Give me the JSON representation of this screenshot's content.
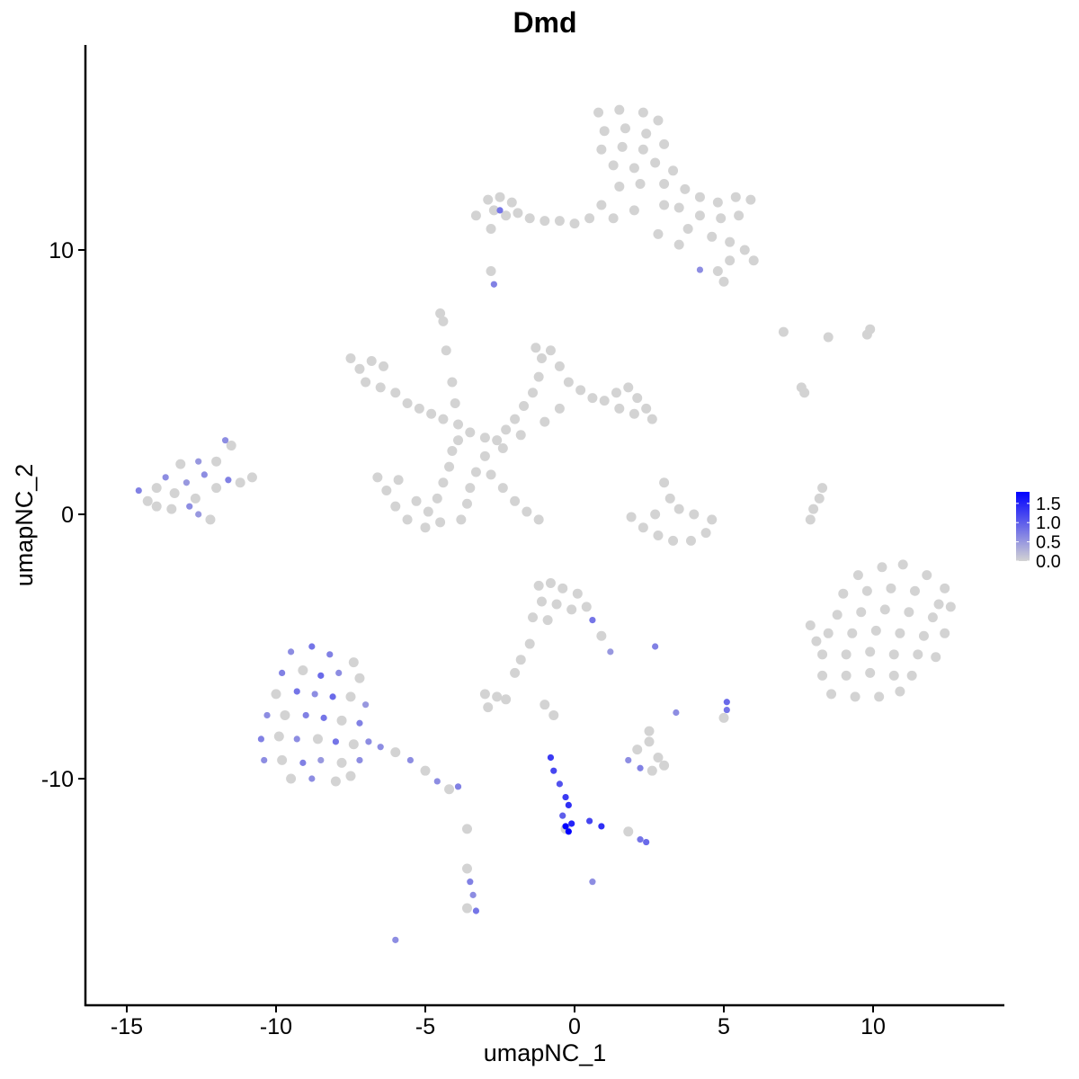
{
  "chart_data": {
    "type": "scatter",
    "title": "Dmd",
    "xlabel": "umapNC_1",
    "ylabel": "umapNC_2",
    "xlim": [
      -16.4,
      14.4
    ],
    "ylim": [
      -18.6,
      17.8
    ],
    "xticks": [
      -15,
      -10,
      -5,
      0,
      5,
      10
    ],
    "yticks": [
      -10,
      0,
      10
    ],
    "xtick_labels": [
      "-15",
      "-10",
      "-5",
      "0",
      "5",
      "10"
    ],
    "ytick_labels": [
      "-10",
      "0",
      "10"
    ],
    "grid": false,
    "color_scale": {
      "low": "#d3d3d3",
      "high": "#0000ff",
      "min": 0,
      "max": 1.8
    },
    "legend": {
      "position": "right",
      "ticks": [
        1.5,
        1.0,
        0.5,
        0.0
      ],
      "labels": [
        "1.5",
        "1.0",
        "0.5",
        "0.0"
      ]
    },
    "points": [
      [
        0.8,
        15.2,
        0
      ],
      [
        1.5,
        15.3,
        0
      ],
      [
        2.3,
        15.2,
        0
      ],
      [
        2.8,
        14.9,
        0
      ],
      [
        1.0,
        14.5,
        0
      ],
      [
        1.7,
        14.6,
        0
      ],
      [
        2.4,
        14.4,
        0
      ],
      [
        0.9,
        13.8,
        0
      ],
      [
        1.6,
        13.9,
        0
      ],
      [
        2.3,
        13.8,
        0
      ],
      [
        3.0,
        14.0,
        0
      ],
      [
        1.3,
        13.2,
        0
      ],
      [
        2.0,
        13.1,
        0
      ],
      [
        2.7,
        13.3,
        0
      ],
      [
        3.3,
        13.0,
        0
      ],
      [
        1.5,
        12.4,
        0
      ],
      [
        2.2,
        12.5,
        0
      ],
      [
        3.0,
        12.5,
        0
      ],
      [
        3.7,
        12.3,
        0
      ],
      [
        4.2,
        12.0,
        0
      ],
      [
        4.8,
        11.8,
        0
      ],
      [
        5.4,
        12.0,
        0
      ],
      [
        5.9,
        11.9,
        0
      ],
      [
        3.5,
        11.6,
        0
      ],
      [
        4.2,
        11.3,
        0
      ],
      [
        4.9,
        11.2,
        0
      ],
      [
        5.5,
        11.3,
        0
      ],
      [
        3.0,
        11.7,
        0
      ],
      [
        2.0,
        11.5,
        0
      ],
      [
        1.3,
        11.2,
        0
      ],
      [
        0.9,
        11.7,
        0
      ],
      [
        3.8,
        10.8,
        0
      ],
      [
        4.6,
        10.5,
        0
      ],
      [
        5.2,
        10.3,
        0
      ],
      [
        5.7,
        10.0,
        0
      ],
      [
        5.2,
        9.6,
        0
      ],
      [
        6.0,
        9.6,
        0
      ],
      [
        4.8,
        9.2,
        0
      ],
      [
        5.0,
        8.8,
        0
      ],
      [
        3.5,
        10.2,
        0
      ],
      [
        2.8,
        10.6,
        0
      ],
      [
        4.2,
        9.25,
        0.6
      ],
      [
        -3.3,
        11.3,
        0
      ],
      [
        -2.9,
        11.9,
        0
      ],
      [
        -2.5,
        12.0,
        0
      ],
      [
        -2.1,
        11.8,
        0
      ],
      [
        -2.7,
        11.5,
        0
      ],
      [
        -2.3,
        11.3,
        0
      ],
      [
        -1.9,
        11.4,
        0
      ],
      [
        -1.5,
        11.2,
        0
      ],
      [
        -1.0,
        11.1,
        0
      ],
      [
        -0.5,
        11.1,
        0
      ],
      [
        0.0,
        11.0,
        0
      ],
      [
        0.5,
        11.2,
        0
      ],
      [
        -2.8,
        10.8,
        0
      ],
      [
        -2.5,
        11.5,
        0.8
      ],
      [
        -2.8,
        9.2,
        0
      ],
      [
        -2.7,
        8.7,
        0.7
      ],
      [
        7.0,
        6.9,
        0
      ],
      [
        8.5,
        6.7,
        0
      ],
      [
        9.8,
        6.8,
        0
      ],
      [
        9.9,
        7.0,
        0
      ],
      [
        7.6,
        4.8,
        0
      ],
      [
        7.7,
        4.6,
        0
      ],
      [
        -7.5,
        5.9,
        0
      ],
      [
        -7.2,
        5.5,
        0
      ],
      [
        -6.8,
        5.8,
        0
      ],
      [
        -6.4,
        5.6,
        0
      ],
      [
        -7.0,
        5.0,
        0
      ],
      [
        -6.5,
        4.8,
        0
      ],
      [
        -6.0,
        4.6,
        0
      ],
      [
        -5.6,
        4.2,
        0
      ],
      [
        -5.2,
        4.0,
        0
      ],
      [
        -4.8,
        3.8,
        0
      ],
      [
        -4.4,
        3.6,
        0
      ],
      [
        -3.9,
        3.4,
        0
      ],
      [
        -3.5,
        3.1,
        0
      ],
      [
        -3.0,
        2.9,
        0
      ],
      [
        -2.6,
        2.8,
        0
      ],
      [
        -4.5,
        7.6,
        0
      ],
      [
        -4.4,
        7.3,
        0
      ],
      [
        -4.3,
        6.2,
        0
      ],
      [
        -4.1,
        5.0,
        0
      ],
      [
        -4.0,
        4.2,
        0
      ],
      [
        -2.3,
        3.2,
        0
      ],
      [
        -2.0,
        3.6,
        0
      ],
      [
        -1.7,
        4.1,
        0
      ],
      [
        -1.4,
        4.6,
        0
      ],
      [
        -1.2,
        5.2,
        0
      ],
      [
        -1.1,
        5.9,
        0
      ],
      [
        -1.3,
        6.3,
        0
      ],
      [
        -0.8,
        6.2,
        0
      ],
      [
        -0.5,
        5.6,
        0
      ],
      [
        -0.2,
        5.0,
        0
      ],
      [
        0.2,
        4.7,
        0
      ],
      [
        0.6,
        4.4,
        0
      ],
      [
        1.0,
        4.3,
        0
      ],
      [
        1.4,
        4.6,
        0
      ],
      [
        1.8,
        4.8,
        0
      ],
      [
        2.1,
        4.4,
        0
      ],
      [
        2.4,
        4.0,
        0
      ],
      [
        2.6,
        3.6,
        0
      ],
      [
        2.0,
        3.8,
        0
      ],
      [
        1.5,
        4.0,
        0
      ],
      [
        -1.0,
        3.5,
        0
      ],
      [
        -0.5,
        4.0,
        0
      ],
      [
        -1.8,
        3.0,
        0
      ],
      [
        -2.4,
        2.5,
        0
      ],
      [
        -3.0,
        2.2,
        0
      ],
      [
        -3.3,
        1.6,
        0
      ],
      [
        -3.5,
        1.0,
        0
      ],
      [
        -3.6,
        0.4,
        0
      ],
      [
        -3.8,
        -0.2,
        0
      ],
      [
        -4.2,
        1.8,
        0
      ],
      [
        -4.4,
        1.2,
        0
      ],
      [
        -4.6,
        0.6,
        0
      ],
      [
        -4.9,
        0.1,
        0
      ],
      [
        -5.3,
        0.5,
        0
      ],
      [
        -5.6,
        -0.2,
        0
      ],
      [
        -6.0,
        0.3,
        0
      ],
      [
        -6.3,
        0.9,
        0
      ],
      [
        -6.6,
        1.4,
        0
      ],
      [
        -5.9,
        1.3,
        0
      ],
      [
        -5.0,
        -0.5,
        0
      ],
      [
        -4.5,
        -0.3,
        0
      ],
      [
        -4.1,
        2.4,
        0
      ],
      [
        -3.9,
        2.8,
        0
      ],
      [
        -2.8,
        1.5,
        0
      ],
      [
        -2.4,
        1.0,
        0
      ],
      [
        -2.0,
        0.5,
        0
      ],
      [
        -1.6,
        0.1,
        0
      ],
      [
        -1.2,
        -0.2,
        0
      ],
      [
        -14.6,
        0.9,
        0.7
      ],
      [
        -14.3,
        0.5,
        0
      ],
      [
        -14.0,
        1.0,
        0
      ],
      [
        -13.7,
        1.4,
        0.6
      ],
      [
        -13.4,
        0.8,
        0
      ],
      [
        -13.0,
        1.2,
        0.5
      ],
      [
        -12.7,
        0.6,
        0
      ],
      [
        -12.4,
        1.5,
        0.6
      ],
      [
        -12.0,
        1.0,
        0
      ],
      [
        -11.6,
        1.3,
        0.7
      ],
      [
        -11.2,
        1.2,
        0
      ],
      [
        -10.8,
        1.4,
        0
      ],
      [
        -13.2,
        1.9,
        0
      ],
      [
        -12.6,
        2.0,
        0.5
      ],
      [
        -12.0,
        2.0,
        0
      ],
      [
        -11.7,
        2.8,
        0.6
      ],
      [
        -11.5,
        2.6,
        0
      ],
      [
        -12.9,
        0.3,
        0.6
      ],
      [
        -13.5,
        0.2,
        0
      ],
      [
        -12.2,
        -0.2,
        0
      ],
      [
        -12.6,
        0.0,
        0.5
      ],
      [
        -14.0,
        0.3,
        0
      ],
      [
        1.9,
        -0.1,
        0
      ],
      [
        2.3,
        -0.5,
        0
      ],
      [
        2.8,
        -0.8,
        0
      ],
      [
        3.3,
        -1.0,
        0
      ],
      [
        3.9,
        -1.0,
        0
      ],
      [
        4.4,
        -0.7,
        0
      ],
      [
        4.6,
        -0.2,
        0
      ],
      [
        3.0,
        1.2,
        0
      ],
      [
        3.2,
        0.6,
        0
      ],
      [
        3.5,
        0.2,
        0
      ],
      [
        2.7,
        0.0,
        0
      ],
      [
        4.0,
        0.0,
        0
      ],
      [
        7.9,
        -0.2,
        0
      ],
      [
        8.0,
        0.2,
        0
      ],
      [
        8.2,
        0.6,
        0
      ],
      [
        8.3,
        1.0,
        0
      ],
      [
        9.5,
        -2.3,
        0
      ],
      [
        10.3,
        -2.0,
        0
      ],
      [
        11.0,
        -1.9,
        0
      ],
      [
        11.8,
        -2.3,
        0
      ],
      [
        12.4,
        -2.8,
        0
      ],
      [
        9.0,
        -3.0,
        0
      ],
      [
        9.8,
        -2.9,
        0
      ],
      [
        10.6,
        -2.8,
        0
      ],
      [
        11.4,
        -2.9,
        0
      ],
      [
        12.2,
        -3.4,
        0
      ],
      [
        12.6,
        -3.5,
        0
      ],
      [
        8.8,
        -3.8,
        0
      ],
      [
        9.6,
        -3.7,
        0
      ],
      [
        10.4,
        -3.6,
        0
      ],
      [
        11.2,
        -3.7,
        0
      ],
      [
        12.0,
        -3.9,
        0
      ],
      [
        8.5,
        -4.5,
        0
      ],
      [
        9.3,
        -4.5,
        0
      ],
      [
        10.1,
        -4.4,
        0
      ],
      [
        10.9,
        -4.5,
        0
      ],
      [
        11.7,
        -4.6,
        0
      ],
      [
        12.4,
        -4.5,
        0
      ],
      [
        8.3,
        -5.3,
        0
      ],
      [
        9.1,
        -5.3,
        0
      ],
      [
        9.9,
        -5.2,
        0
      ],
      [
        10.7,
        -5.3,
        0
      ],
      [
        11.5,
        -5.3,
        0
      ],
      [
        12.1,
        -5.4,
        0
      ],
      [
        8.3,
        -6.1,
        0
      ],
      [
        9.1,
        -6.1,
        0
      ],
      [
        9.9,
        -6.0,
        0
      ],
      [
        10.7,
        -6.1,
        0
      ],
      [
        11.3,
        -6.1,
        0
      ],
      [
        8.6,
        -6.8,
        0
      ],
      [
        9.4,
        -6.9,
        0
      ],
      [
        10.2,
        -6.9,
        0
      ],
      [
        10.9,
        -6.7,
        0
      ],
      [
        7.9,
        -4.2,
        0
      ],
      [
        8.1,
        -4.8,
        0
      ],
      [
        -9.5,
        -5.2,
        0.6
      ],
      [
        -8.8,
        -5.0,
        0.8
      ],
      [
        -8.2,
        -5.3,
        0.7
      ],
      [
        -7.4,
        -5.6,
        0
      ],
      [
        -9.8,
        -6.0,
        0.7
      ],
      [
        -9.1,
        -5.9,
        0
      ],
      [
        -8.5,
        -6.1,
        0.9
      ],
      [
        -7.9,
        -6.0,
        0.6
      ],
      [
        -7.2,
        -6.2,
        0
      ],
      [
        -10.0,
        -6.8,
        0
      ],
      [
        -9.3,
        -6.7,
        0.8
      ],
      [
        -8.7,
        -6.8,
        0.6
      ],
      [
        -8.1,
        -6.9,
        0.9
      ],
      [
        -7.5,
        -6.9,
        0
      ],
      [
        -7.0,
        -7.2,
        0.5
      ],
      [
        -10.3,
        -7.6,
        0.6
      ],
      [
        -9.7,
        -7.6,
        0
      ],
      [
        -9.0,
        -7.6,
        0.7
      ],
      [
        -8.4,
        -7.7,
        0.8
      ],
      [
        -7.8,
        -7.8,
        0
      ],
      [
        -7.2,
        -7.9,
        0.7
      ],
      [
        -10.5,
        -8.5,
        0.7
      ],
      [
        -9.9,
        -8.4,
        0
      ],
      [
        -9.3,
        -8.5,
        0.6
      ],
      [
        -8.6,
        -8.5,
        0
      ],
      [
        -8.0,
        -8.6,
        0.8
      ],
      [
        -7.4,
        -8.7,
        0
      ],
      [
        -6.9,
        -8.6,
        0.6
      ],
      [
        -10.4,
        -9.3,
        0.6
      ],
      [
        -9.8,
        -9.3,
        0
      ],
      [
        -9.1,
        -9.4,
        0.7
      ],
      [
        -8.5,
        -9.3,
        0.5
      ],
      [
        -7.8,
        -9.4,
        0
      ],
      [
        -7.2,
        -9.3,
        0.6
      ],
      [
        -9.5,
        -10.0,
        0
      ],
      [
        -8.8,
        -10.0,
        0.6
      ],
      [
        -8.0,
        -10.1,
        0
      ],
      [
        -7.5,
        -9.9,
        0
      ],
      [
        -6.5,
        -8.8,
        0.6
      ],
      [
        -6.0,
        -9.0,
        0
      ],
      [
        -5.5,
        -9.3,
        0.6
      ],
      [
        -5.0,
        -9.7,
        0
      ],
      [
        -4.6,
        -10.1,
        0.6
      ],
      [
        -4.2,
        -10.4,
        0
      ],
      [
        -3.9,
        -10.3,
        0.7
      ],
      [
        -1.2,
        -2.7,
        0
      ],
      [
        -0.8,
        -2.6,
        0
      ],
      [
        -0.4,
        -2.8,
        0
      ],
      [
        0.1,
        -3.0,
        0
      ],
      [
        -1.1,
        -3.3,
        0
      ],
      [
        -0.6,
        -3.4,
        0
      ],
      [
        -0.1,
        -3.6,
        0
      ],
      [
        0.4,
        -3.5,
        0
      ],
      [
        0.6,
        -4.0,
        0.8
      ],
      [
        0.9,
        -4.6,
        0
      ],
      [
        1.2,
        -5.2,
        0.5
      ],
      [
        -1.4,
        -3.9,
        0
      ],
      [
        -0.9,
        -4.0,
        0
      ],
      [
        -1.5,
        -4.9,
        0
      ],
      [
        -1.8,
        -5.5,
        0
      ],
      [
        -2.0,
        -6.0,
        0
      ],
      [
        -3.0,
        -6.8,
        0
      ],
      [
        -2.6,
        -6.9,
        0
      ],
      [
        -2.3,
        -7.0,
        0
      ],
      [
        -2.9,
        -7.3,
        0
      ],
      [
        -1.0,
        -7.2,
        0
      ],
      [
        -0.7,
        -7.6,
        0
      ],
      [
        2.7,
        -5.0,
        0.7
      ],
      [
        3.4,
        -7.5,
        0.6
      ],
      [
        5.1,
        -7.1,
        0.9
      ],
      [
        5.1,
        -7.4,
        0.8
      ],
      [
        5.0,
        -7.7,
        0
      ],
      [
        -0.8,
        -9.2,
        1.3
      ],
      [
        -0.7,
        -9.7,
        1.2
      ],
      [
        -0.5,
        -10.2,
        1.1
      ],
      [
        -0.3,
        -10.7,
        1.3
      ],
      [
        -0.2,
        -11.0,
        1.4
      ],
      [
        -0.4,
        -11.4,
        1.0
      ],
      [
        -0.3,
        -11.9,
        0
      ],
      [
        -0.3,
        -11.8,
        1.8
      ],
      [
        -0.2,
        -12.0,
        1.9
      ],
      [
        -0.1,
        -11.7,
        1.5
      ],
      [
        0.5,
        -11.6,
        1.2
      ],
      [
        0.9,
        -11.8,
        1.4
      ],
      [
        1.8,
        -12.0,
        0
      ],
      [
        2.2,
        -12.3,
        0.8
      ],
      [
        2.4,
        -12.4,
        0.9
      ],
      [
        0.6,
        -13.9,
        0.6
      ],
      [
        1.8,
        -9.3,
        0.6
      ],
      [
        2.1,
        -8.9,
        0
      ],
      [
        2.5,
        -8.6,
        0
      ],
      [
        2.8,
        -9.2,
        0
      ],
      [
        2.2,
        -9.6,
        0.7
      ],
      [
        2.6,
        -9.7,
        0
      ],
      [
        3.0,
        -9.5,
        0
      ],
      [
        2.5,
        -8.2,
        0
      ],
      [
        -3.6,
        -13.4,
        0
      ],
      [
        -3.5,
        -13.9,
        0.7
      ],
      [
        -3.4,
        -14.4,
        0.6
      ],
      [
        -3.6,
        -14.9,
        0
      ],
      [
        -3.3,
        -15.0,
        0.8
      ],
      [
        -3.6,
        -11.9,
        0
      ],
      [
        -6.0,
        -16.1,
        0.6
      ]
    ]
  }
}
